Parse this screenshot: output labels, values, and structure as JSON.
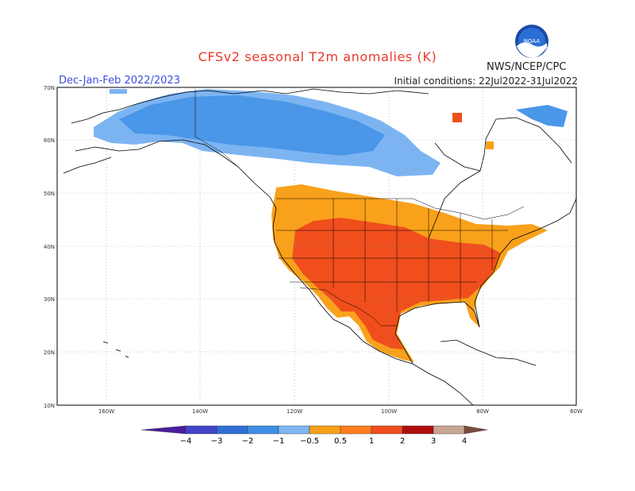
{
  "header": {
    "title": "CFSv2 seasonal T2m anomalies (K)",
    "period": "Dec-Jan-Feb 2022/2023",
    "initial_conditions": "Initial conditions: 22Jul2022-31Jul2022",
    "agency": "NWS/NCEP/CPC",
    "logo_text": "NOAA"
  },
  "map": {
    "lat_labels": [
      "70N",
      "60N",
      "50N",
      "40N",
      "30N",
      "20N",
      "10N"
    ],
    "lon_labels": [
      "160W",
      "140W",
      "120W",
      "100W",
      "80W",
      "60W"
    ],
    "colors": {
      "ocean": "#ffffff",
      "coast": "#000000",
      "warm_light": "#f9a11a",
      "warm": "#f04e1c",
      "cool_light": "#7cb4f2",
      "cool": "#4a96e8"
    }
  },
  "colorbar": {
    "labels": [
      "−4",
      "−3",
      "−2",
      "−1",
      "−0.5",
      "0.5",
      "1",
      "2",
      "3",
      "4"
    ],
    "colors": [
      "#4b1d9e",
      "#4243c8",
      "#2f6ed6",
      "#3e8ee6",
      "#7eb6f2",
      "#f9a11a",
      "#fd7d1e",
      "#f04e1c",
      "#b00e0e",
      "#c9a595",
      "#7a4a3c"
    ]
  }
}
